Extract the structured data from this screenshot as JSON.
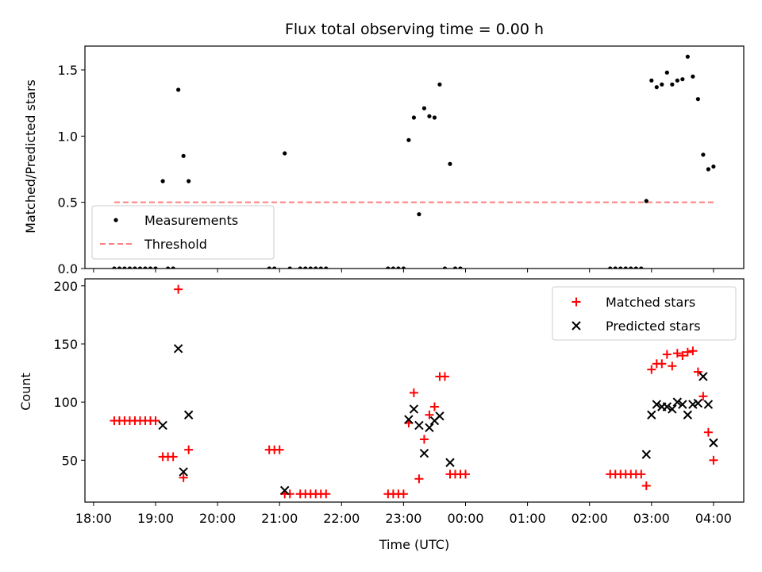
{
  "title": "Flux total observing time = 0.00 h",
  "chart_data": [
    {
      "type": "scatter",
      "ylabel": "Matched/Predicted stars",
      "ylim": [
        0,
        1.68
      ],
      "yticks": [
        "0.0",
        "0.5",
        "1.0",
        "1.5"
      ],
      "ytick_values": [
        0,
        0.5,
        1.0,
        1.5
      ],
      "legend_placement": "lower-left",
      "legend": [
        "Measurements",
        "Threshold"
      ],
      "threshold": {
        "name": "Threshold",
        "value": 0.5,
        "x_range": [
          "18:20",
          "04:00"
        ],
        "color": "#ff7f7f"
      },
      "series": [
        {
          "name": "Measurements",
          "color": "#000000",
          "marker": "dot",
          "points": [
            [
              "18:20",
              0
            ],
            [
              "18:25",
              0
            ],
            [
              "18:30",
              0
            ],
            [
              "18:35",
              0
            ],
            [
              "18:40",
              0
            ],
            [
              "18:45",
              0
            ],
            [
              "18:50",
              0
            ],
            [
              "18:55",
              0
            ],
            [
              "19:00",
              0
            ],
            [
              "19:07",
              0.66
            ],
            [
              "19:12",
              0
            ],
            [
              "19:17",
              0
            ],
            [
              "19:22",
              1.35
            ],
            [
              "19:27",
              0.85
            ],
            [
              "19:32",
              0.66
            ],
            [
              "20:50",
              0
            ],
            [
              "20:55",
              0
            ],
            [
              "21:05",
              0.87
            ],
            [
              "21:10",
              0
            ],
            [
              "21:20",
              0
            ],
            [
              "21:25",
              0
            ],
            [
              "21:30",
              0
            ],
            [
              "21:35",
              0
            ],
            [
              "21:40",
              0
            ],
            [
              "21:45",
              0
            ],
            [
              "22:45",
              0
            ],
            [
              "22:50",
              0
            ],
            [
              "22:55",
              0
            ],
            [
              "23:00",
              0
            ],
            [
              "23:05",
              0.97
            ],
            [
              "23:10",
              1.14
            ],
            [
              "23:15",
              0.41
            ],
            [
              "23:20",
              1.21
            ],
            [
              "23:25",
              1.15
            ],
            [
              "23:30",
              1.14
            ],
            [
              "23:35",
              1.39
            ],
            [
              "23:40",
              0
            ],
            [
              "23:45",
              0.79
            ],
            [
              "23:50",
              0
            ],
            [
              "23:55",
              0
            ],
            [
              "02:20",
              0
            ],
            [
              "02:25",
              0
            ],
            [
              "02:30",
              0
            ],
            [
              "02:35",
              0
            ],
            [
              "02:40",
              0
            ],
            [
              "02:45",
              0
            ],
            [
              "02:50",
              0
            ],
            [
              "02:55",
              0.51
            ],
            [
              "03:00",
              1.42
            ],
            [
              "03:05",
              1.37
            ],
            [
              "03:10",
              1.39
            ],
            [
              "03:15",
              1.48
            ],
            [
              "03:20",
              1.39
            ],
            [
              "03:25",
              1.42
            ],
            [
              "03:30",
              1.43
            ],
            [
              "03:35",
              1.6
            ],
            [
              "03:40",
              1.45
            ],
            [
              "03:45",
              1.28
            ],
            [
              "03:50",
              0.86
            ],
            [
              "03:55",
              0.75
            ],
            [
              "04:00",
              0.77
            ]
          ]
        }
      ]
    },
    {
      "type": "scatter",
      "xlabel": "Time (UTC)",
      "ylabel": "Count",
      "ylim": [
        14,
        206
      ],
      "yticks": [
        "50",
        "100",
        "150",
        "200"
      ],
      "ytick_values": [
        50,
        100,
        150,
        200
      ],
      "xticks": [
        "18:00",
        "19:00",
        "20:00",
        "21:00",
        "22:00",
        "23:00",
        "00:00",
        "01:00",
        "02:00",
        "03:00",
        "04:00"
      ],
      "legend_placement": "top-right",
      "legend": [
        "Matched stars",
        "Predicted stars"
      ],
      "series": [
        {
          "name": "Matched stars",
          "color": "#ff0000",
          "marker": "plus",
          "points": [
            [
              "18:20",
              84
            ],
            [
              "18:25",
              84
            ],
            [
              "18:30",
              84
            ],
            [
              "18:35",
              84
            ],
            [
              "18:40",
              84
            ],
            [
              "18:45",
              84
            ],
            [
              "18:50",
              84
            ],
            [
              "18:55",
              84
            ],
            [
              "19:00",
              84
            ],
            [
              "19:07",
              53
            ],
            [
              "19:12",
              53
            ],
            [
              "19:17",
              53
            ],
            [
              "19:22",
              197
            ],
            [
              "19:27",
              35
            ],
            [
              "19:32",
              59
            ],
            [
              "20:50",
              59
            ],
            [
              "20:55",
              59
            ],
            [
              "21:00",
              59
            ],
            [
              "21:05",
              21
            ],
            [
              "21:10",
              21
            ],
            [
              "21:20",
              21
            ],
            [
              "21:25",
              21
            ],
            [
              "21:30",
              21
            ],
            [
              "21:35",
              21
            ],
            [
              "21:40",
              21
            ],
            [
              "21:45",
              21
            ],
            [
              "22:45",
              21
            ],
            [
              "22:50",
              21
            ],
            [
              "22:55",
              21
            ],
            [
              "23:00",
              21
            ],
            [
              "23:05",
              82
            ],
            [
              "23:10",
              108
            ],
            [
              "23:15",
              34
            ],
            [
              "23:20",
              68
            ],
            [
              "23:25",
              89
            ],
            [
              "23:30",
              96
            ],
            [
              "23:35",
              122
            ],
            [
              "23:40",
              122
            ],
            [
              "23:45",
              38
            ],
            [
              "23:50",
              38
            ],
            [
              "23:55",
              38
            ],
            [
              "00:00",
              38
            ],
            [
              "02:20",
              38
            ],
            [
              "02:25",
              38
            ],
            [
              "02:30",
              38
            ],
            [
              "02:35",
              38
            ],
            [
              "02:40",
              38
            ],
            [
              "02:45",
              38
            ],
            [
              "02:50",
              38
            ],
            [
              "02:55",
              28
            ],
            [
              "03:00",
              128
            ],
            [
              "03:05",
              133
            ],
            [
              "03:10",
              133
            ],
            [
              "03:15",
              141
            ],
            [
              "03:20",
              131
            ],
            [
              "03:25",
              142
            ],
            [
              "03:30",
              140
            ],
            [
              "03:35",
              143
            ],
            [
              "03:40",
              144
            ],
            [
              "03:45",
              126
            ],
            [
              "03:50",
              105
            ],
            [
              "03:55",
              74
            ],
            [
              "04:00",
              50
            ]
          ]
        },
        {
          "name": "Predicted stars",
          "color": "#000000",
          "marker": "x",
          "points": [
            [
              "19:07",
              80
            ],
            [
              "19:22",
              146
            ],
            [
              "19:27",
              40
            ],
            [
              "19:32",
              89
            ],
            [
              "21:05",
              24
            ],
            [
              "23:05",
              85
            ],
            [
              "23:10",
              94
            ],
            [
              "23:15",
              80
            ],
            [
              "23:20",
              56
            ],
            [
              "23:25",
              78
            ],
            [
              "23:30",
              84
            ],
            [
              "23:35",
              88
            ],
            [
              "23:45",
              48
            ],
            [
              "02:55",
              55
            ],
            [
              "03:00",
              89
            ],
            [
              "03:05",
              98
            ],
            [
              "03:10",
              96
            ],
            [
              "03:15",
              96
            ],
            [
              "03:20",
              94
            ],
            [
              "03:25",
              100
            ],
            [
              "03:30",
              98
            ],
            [
              "03:35",
              89
            ],
            [
              "03:40",
              98
            ],
            [
              "03:45",
              99
            ],
            [
              "03:50",
              122
            ],
            [
              "03:55",
              98
            ],
            [
              "04:00",
              65
            ]
          ]
        }
      ]
    }
  ]
}
